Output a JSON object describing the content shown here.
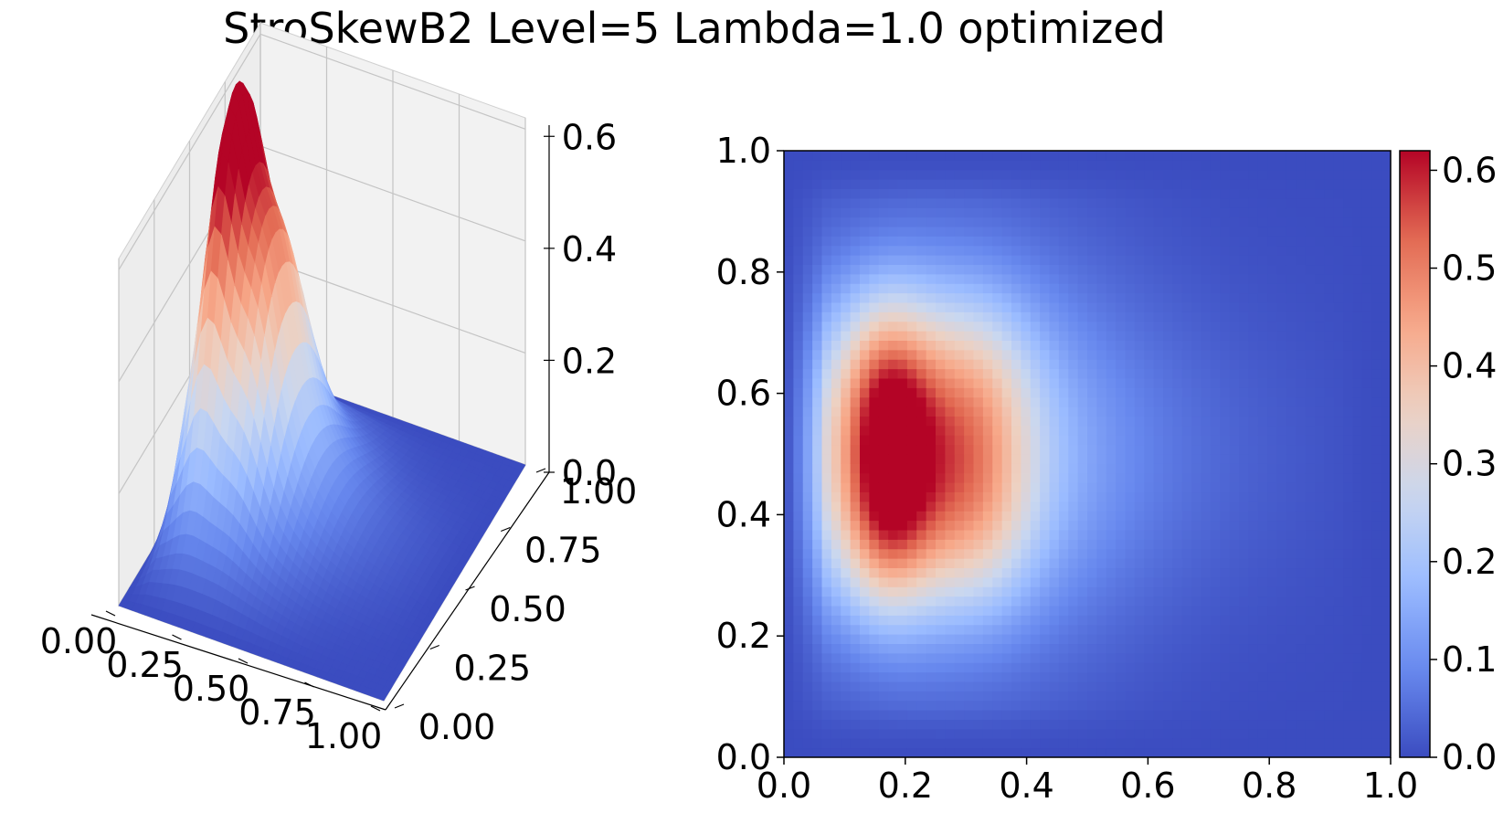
{
  "figure": {
    "title": "StroSkewB2 Level=5 Lambda=1.0 optimized"
  },
  "colormap": {
    "name": "coolwarm",
    "stops": [
      "#3b4cc0",
      "#6788ee",
      "#9abbff",
      "#c9d7f0",
      "#edd1c2",
      "#f7a889",
      "#e26952",
      "#b40426"
    ]
  },
  "chart_data": [
    {
      "type": "surface3d",
      "x_ticks": [
        "0.00",
        "0.25",
        "0.50",
        "0.75",
        "1.00"
      ],
      "y_ticks": [
        "0.00",
        "0.25",
        "0.50",
        "0.75",
        "1.00"
      ],
      "z_ticks": [
        "0.0",
        "0.2",
        "0.4",
        "0.6"
      ],
      "xlim": [
        0,
        1
      ],
      "ylim": [
        0,
        1
      ],
      "zlim": [
        0,
        0.62
      ],
      "peaks": [
        {
          "x": 0.17,
          "y": 0.4,
          "z": 0.62
        },
        {
          "x": 0.17,
          "y": 0.6,
          "z": 0.62
        },
        {
          "x": 0.31,
          "y": 0.4,
          "z": 0.53
        },
        {
          "x": 0.31,
          "y": 0.6,
          "z": 0.52
        }
      ]
    },
    {
      "type": "heatmap",
      "x_ticks": [
        "0.0",
        "0.2",
        "0.4",
        "0.6",
        "0.8",
        "1.0"
      ],
      "y_ticks": [
        "0.0",
        "0.2",
        "0.4",
        "0.6",
        "0.8",
        "1.0"
      ],
      "xlim": [
        0,
        1
      ],
      "ylim": [
        0,
        1
      ],
      "grid": false,
      "colorbar": {
        "ticks": [
          "0.0",
          "0.1",
          "0.2",
          "0.3",
          "0.4",
          "0.5",
          "0.6"
        ],
        "range": [
          0,
          0.62
        ]
      }
    }
  ]
}
